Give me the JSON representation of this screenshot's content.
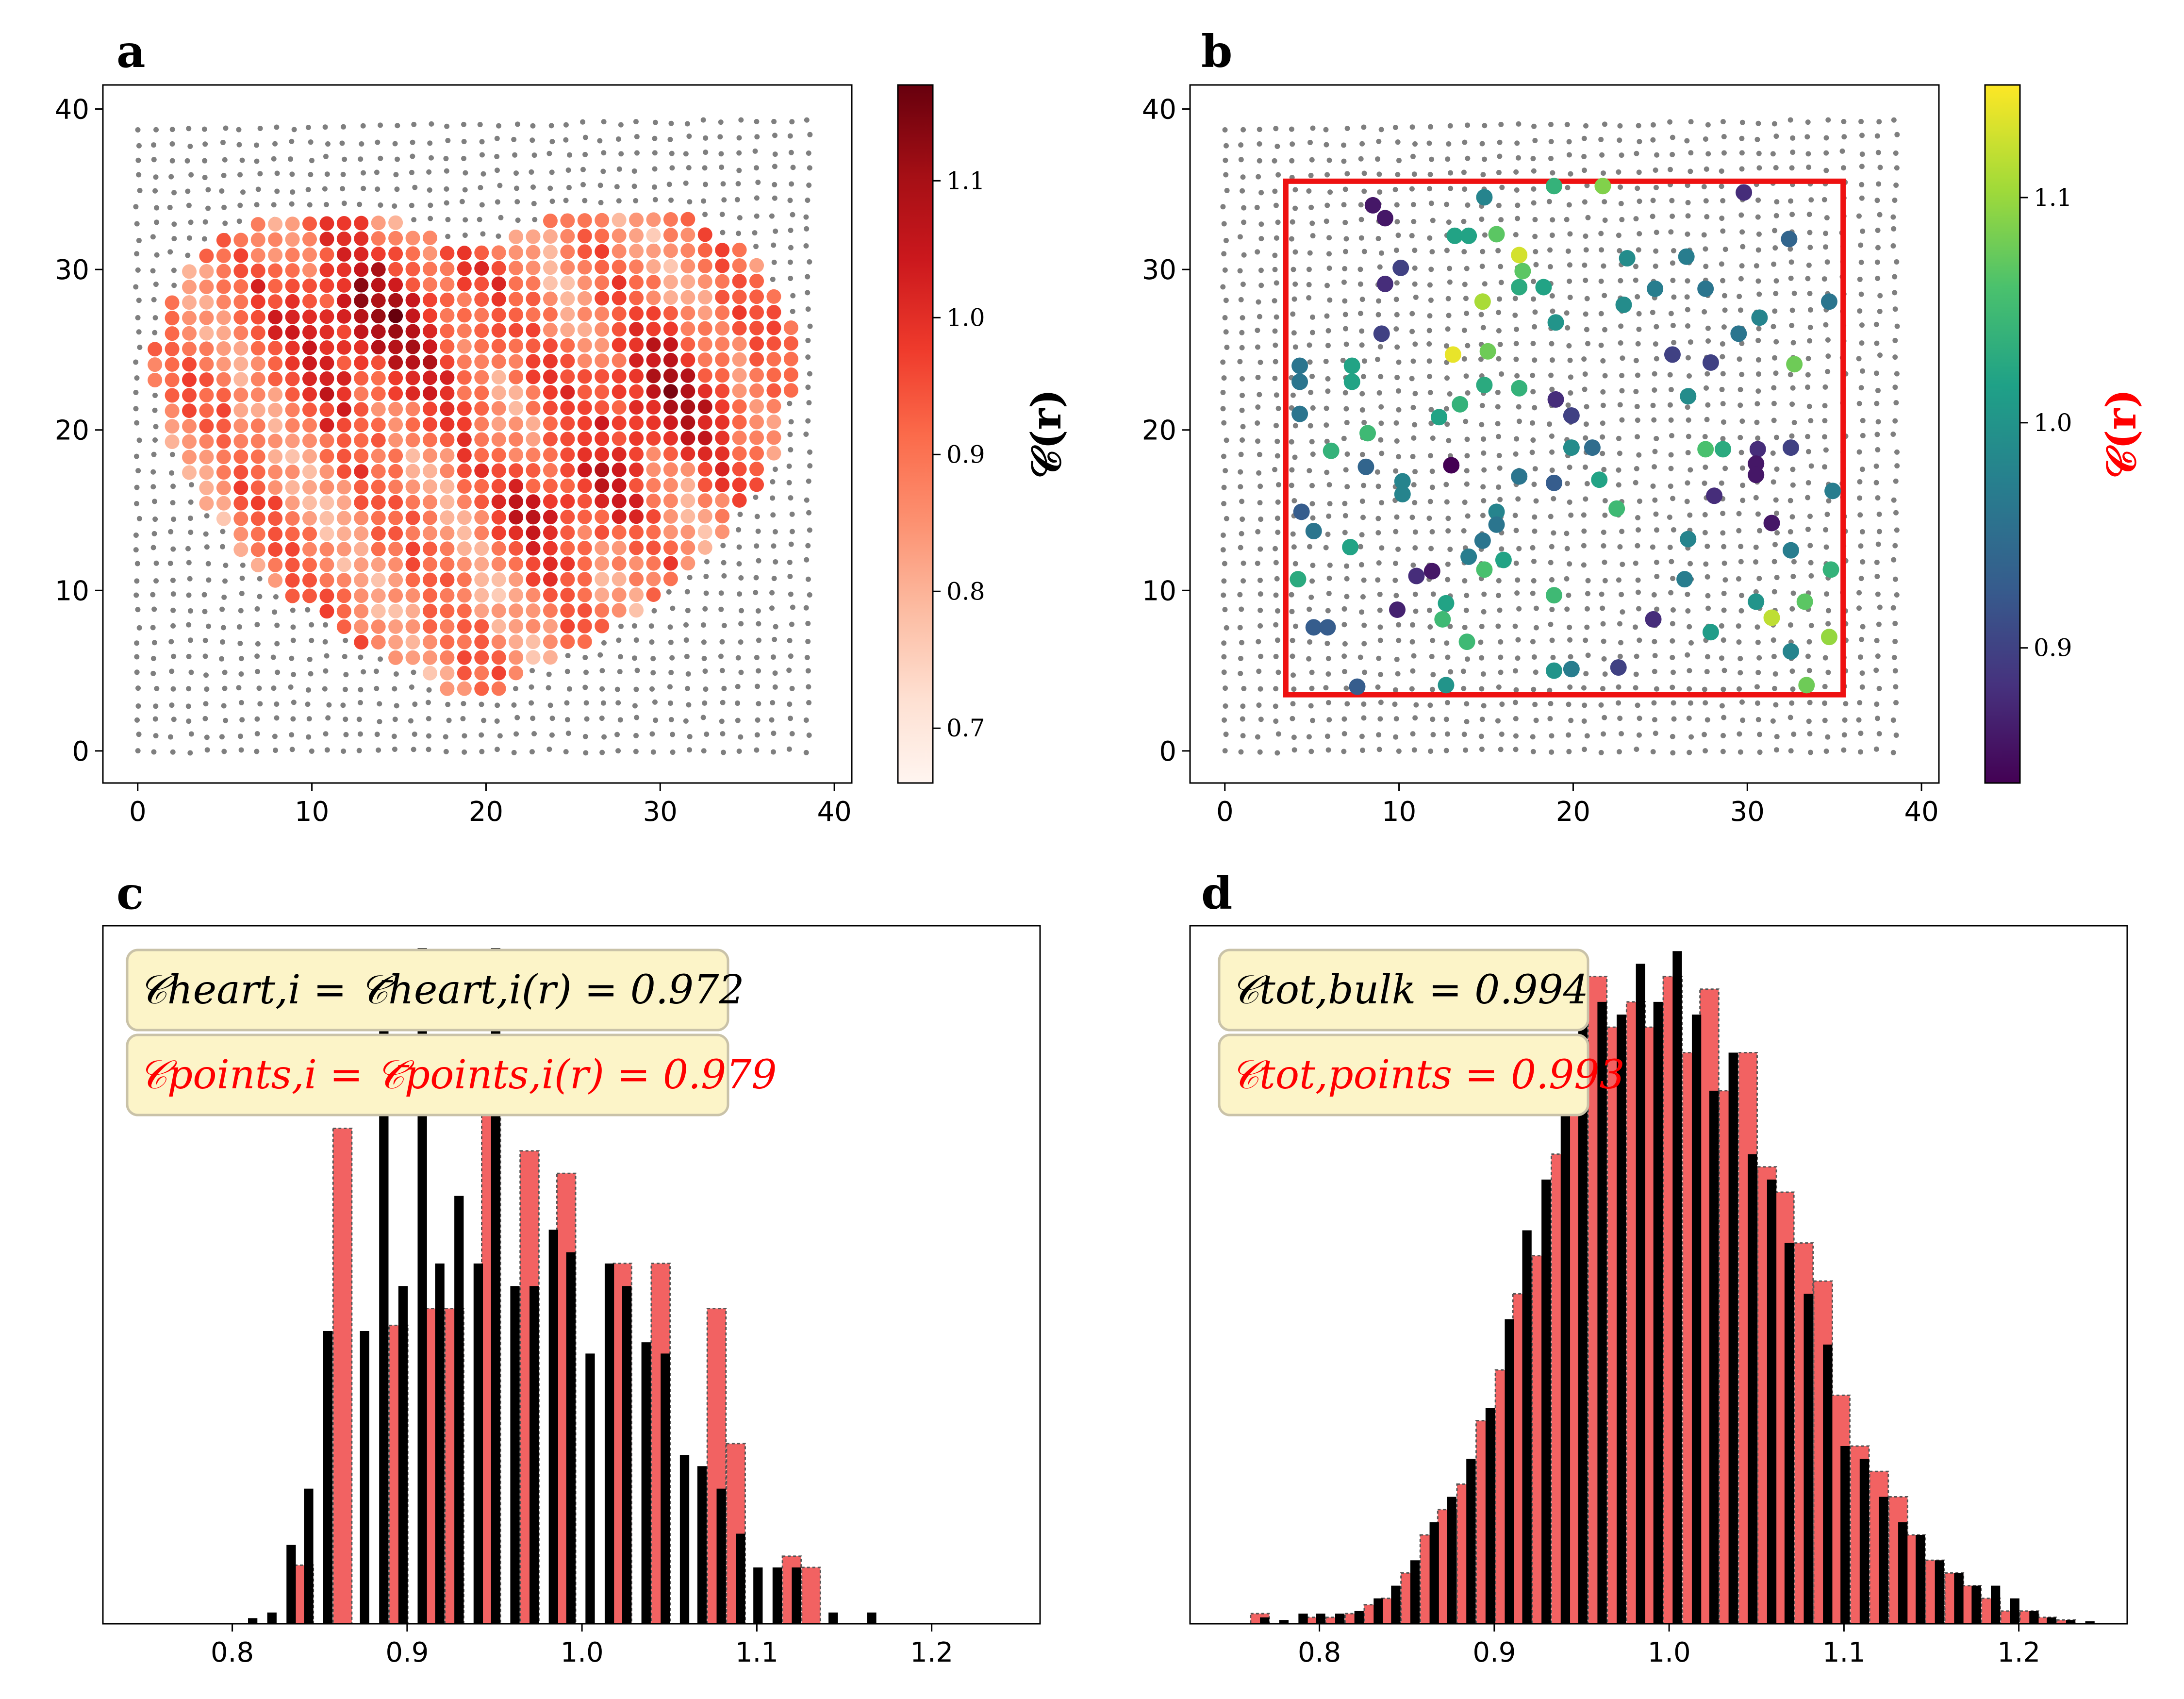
{
  "panels": {
    "a": {
      "letter": "a",
      "colorbar_label": "𝒞(r)",
      "colorbar_ticks": [
        "0.7",
        "0.8",
        "0.9",
        "1.0",
        "1.1"
      ]
    },
    "b": {
      "letter": "b",
      "colorbar_label": "𝒞(r)",
      "colorbar_ticks": [
        "0.9",
        "1.0",
        "1.1"
      ]
    },
    "c": {
      "letter": "c",
      "stat_heart": "𝒞heart,i = 𝒞̄heart,i(r) = 0.972",
      "stat_points": "𝒞points,i = 𝒞̄points,i(r) = 0.979"
    },
    "d": {
      "letter": "d",
      "stat_bulk": "𝒞tot,bulk = 0.994",
      "stat_points": "𝒞tot,points = 0.993"
    }
  },
  "colors": {
    "grid_dot": "#7f7f7f",
    "box_red": "#ee1111",
    "hist_black": "#000000",
    "hist_red": "#f26262",
    "stat_box_fill": "#fcf4c8",
    "stat_box_edge": "#c9c2a8",
    "text_red": "#ff0000"
  },
  "chart_data": [
    {
      "panel": "a",
      "type": "scatter",
      "title": "",
      "xlabel": "",
      "ylabel": "",
      "xlim": [
        -2,
        41
      ],
      "ylim": [
        -2,
        41.5
      ],
      "xticks": [
        "0",
        "10",
        "20",
        "30",
        "40"
      ],
      "yticks": [
        "0",
        "10",
        "20",
        "30",
        "40"
      ],
      "background": "regular grid of gray points, 40 x 40, spacing 1",
      "foreground": "heart-shaped region of points colored by 𝒞(r), Reds colormap",
      "colormap": "Reds",
      "clim": [
        0.66,
        1.17
      ]
    },
    {
      "panel": "b",
      "type": "scatter",
      "title": "",
      "xlabel": "",
      "ylabel": "",
      "xlim": [
        -2,
        41
      ],
      "ylim": [
        -2,
        41.5
      ],
      "xticks": [
        "0",
        "10",
        "20",
        "30",
        "40"
      ],
      "yticks": [
        "0",
        "10",
        "20",
        "30",
        "40"
      ],
      "background": "regular grid of gray points, 40 x 40, spacing 1",
      "selection_box": {
        "x": [
          3.5,
          35.5
        ],
        "y": [
          3.5,
          35.5
        ]
      },
      "colormap": "viridis",
      "clim": [
        0.84,
        1.15
      ],
      "points": [
        [
          8.5,
          34.0,
          0.86
        ],
        [
          9.2,
          33.2,
          0.86
        ],
        [
          14.9,
          34.5,
          0.98
        ],
        [
          18.9,
          35.2,
          1.04
        ],
        [
          21.7,
          35.2,
          1.09
        ],
        [
          29.8,
          34.8,
          0.88
        ],
        [
          13.2,
          32.1,
          1.02
        ],
        [
          14.0,
          32.1,
          1.02
        ],
        [
          15.6,
          32.2,
          1.07
        ],
        [
          32.4,
          31.9,
          0.94
        ],
        [
          16.9,
          30.9,
          1.13
        ],
        [
          10.1,
          30.1,
          0.9
        ],
        [
          17.1,
          29.9,
          1.07
        ],
        [
          23.1,
          30.7,
          0.99
        ],
        [
          26.5,
          30.8,
          0.97
        ],
        [
          9.2,
          29.1,
          0.88
        ],
        [
          16.9,
          28.9,
          1.03
        ],
        [
          18.3,
          28.9,
          1.02
        ],
        [
          24.7,
          28.8,
          0.97
        ],
        [
          27.6,
          28.8,
          0.96
        ],
        [
          14.8,
          28.0,
          1.11
        ],
        [
          22.9,
          27.8,
          0.99
        ],
        [
          30.7,
          27.0,
          0.98
        ],
        [
          34.7,
          28.0,
          0.96
        ],
        [
          9.0,
          26.0,
          0.9
        ],
        [
          19.0,
          26.7,
          1.0
        ],
        [
          29.5,
          26.0,
          0.96
        ],
        [
          13.1,
          24.7,
          1.14
        ],
        [
          15.1,
          24.9,
          1.08
        ],
        [
          25.7,
          24.7,
          0.9
        ],
        [
          27.9,
          24.2,
          0.9
        ],
        [
          32.7,
          24.1,
          1.08
        ],
        [
          4.3,
          24.0,
          0.96
        ],
        [
          7.3,
          24.0,
          1.02
        ],
        [
          7.3,
          23.0,
          1.02
        ],
        [
          4.3,
          23.0,
          0.96
        ],
        [
          14.9,
          22.8,
          1.03
        ],
        [
          16.9,
          22.6,
          1.04
        ],
        [
          26.6,
          22.1,
          0.99
        ],
        [
          4.3,
          21.0,
          0.96
        ],
        [
          13.5,
          21.6,
          1.04
        ],
        [
          12.3,
          20.8,
          1.02
        ],
        [
          19.0,
          21.9,
          0.88
        ],
        [
          19.9,
          20.9,
          0.9
        ],
        [
          8.2,
          19.8,
          1.05
        ],
        [
          6.1,
          18.7,
          1.04
        ],
        [
          19.9,
          18.9,
          0.99
        ],
        [
          21.1,
          18.9,
          0.95
        ],
        [
          27.6,
          18.8,
          1.06
        ],
        [
          28.6,
          18.8,
          1.03
        ],
        [
          30.6,
          18.8,
          0.88
        ],
        [
          32.5,
          18.9,
          0.9
        ],
        [
          8.1,
          17.7,
          0.94
        ],
        [
          13.0,
          17.8,
          0.84
        ],
        [
          16.9,
          17.1,
          0.96
        ],
        [
          18.9,
          16.7,
          0.93
        ],
        [
          21.5,
          16.9,
          1.02
        ],
        [
          30.5,
          17.9,
          0.86
        ],
        [
          30.5,
          17.2,
          0.86
        ],
        [
          10.2,
          16.8,
          0.98
        ],
        [
          10.2,
          16.0,
          0.98
        ],
        [
          28.1,
          15.9,
          0.88
        ],
        [
          34.9,
          16.2,
          0.97
        ],
        [
          4.4,
          14.9,
          0.93
        ],
        [
          15.6,
          14.9,
          0.98
        ],
        [
          22.5,
          15.1,
          1.05
        ],
        [
          31.4,
          14.2,
          0.86
        ],
        [
          5.1,
          13.7,
          0.96
        ],
        [
          15.6,
          14.1,
          0.96
        ],
        [
          14.8,
          13.1,
          0.96
        ],
        [
          26.6,
          13.2,
          0.98
        ],
        [
          7.2,
          12.7,
          1.02
        ],
        [
          14.0,
          12.1,
          0.97
        ],
        [
          16.0,
          11.9,
          1.02
        ],
        [
          32.5,
          12.5,
          0.97
        ],
        [
          4.2,
          10.7,
          1.03
        ],
        [
          11.0,
          10.9,
          0.88
        ],
        [
          11.9,
          11.2,
          0.86
        ],
        [
          14.9,
          11.3,
          1.06
        ],
        [
          26.4,
          10.7,
          0.97
        ],
        [
          34.8,
          11.3,
          1.04
        ],
        [
          9.9,
          8.8,
          0.87
        ],
        [
          12.7,
          9.2,
          1.02
        ],
        [
          18.9,
          9.7,
          1.05
        ],
        [
          30.5,
          9.3,
          1.0
        ],
        [
          31.4,
          8.3,
          1.12
        ],
        [
          33.3,
          9.3,
          1.07
        ],
        [
          5.1,
          7.7,
          0.93
        ],
        [
          5.9,
          7.7,
          0.93
        ],
        [
          12.5,
          8.2,
          1.05
        ],
        [
          24.6,
          8.2,
          0.88
        ],
        [
          27.9,
          7.4,
          1.01
        ],
        [
          13.9,
          6.8,
          1.05
        ],
        [
          32.5,
          6.2,
          0.98
        ],
        [
          34.7,
          7.1,
          1.1
        ],
        [
          7.6,
          4.0,
          0.93
        ],
        [
          12.7,
          4.1,
          1.0
        ],
        [
          18.9,
          5.0,
          1.0
        ],
        [
          19.9,
          5.1,
          0.97
        ],
        [
          22.6,
          5.2,
          0.9
        ],
        [
          33.4,
          4.1,
          1.08
        ]
      ]
    },
    {
      "panel": "c",
      "type": "bar",
      "title": "",
      "xlabel": "",
      "ylabel": "",
      "xlim": [
        0.726,
        1.262
      ],
      "xticks": [
        "0.8",
        "0.9",
        "1.0",
        "1.1",
        "1.2"
      ],
      "bin_width": 0.0107,
      "series": [
        {
          "bins": [
            0.809,
            0.82,
            0.831,
            0.841,
            0.852,
            0.863,
            0.873,
            0.884,
            0.895,
            0.906,
            0.916,
            0.927,
            0.938,
            0.948,
            0.959,
            0.97,
            0.981,
            0.991,
            1.002,
            1.013,
            1.023,
            1.034,
            1.045,
            1.056,
            1.066,
            1.077,
            1.088,
            1.098,
            1.109,
            1.12,
            1.131,
            1.141,
            1.152,
            1.163,
            1.173
          ],
          "values": [
            0.5,
            1.0,
            7.0,
            12.0,
            26.0,
            0,
            26.0,
            53.0,
            30.0,
            60.0,
            32.0,
            38.0,
            32.0,
            60.0,
            30.0,
            30.0,
            35.0,
            33.0,
            24.0,
            32.0,
            30.0,
            25.0,
            24.0,
            15.0,
            14.0,
            12.0,
            8.0,
            5.0,
            5.0,
            5.0,
            0,
            1.0,
            0,
            1.0,
            0
          ]
        },
        {
          "bins": [
            0.809,
            0.82,
            0.831,
            0.841,
            0.852,
            0.863,
            0.873,
            0.884,
            0.895,
            0.906,
            0.916,
            0.927,
            0.938,
            0.948,
            0.959,
            0.97,
            0.981,
            0.991,
            1.002,
            1.013,
            1.023,
            1.034,
            1.045,
            1.056,
            1.066,
            1.077,
            1.088,
            1.098,
            1.109,
            1.12,
            1.131,
            1.141,
            1.152,
            1.163,
            1.173
          ],
          "values": [
            0,
            0,
            0,
            5.2,
            0,
            44.0,
            0,
            0,
            26.5,
            0,
            28.0,
            28.0,
            0,
            48.5,
            0,
            42.0,
            0,
            40.0,
            0,
            0,
            32.0,
            0,
            32.0,
            0,
            0,
            28.0,
            16.0,
            0,
            0,
            6.0,
            5.0,
            0,
            0,
            0,
            0
          ]
        }
      ]
    },
    {
      "panel": "d",
      "type": "bar",
      "title": "",
      "xlabel": "",
      "ylabel": "",
      "xlim": [
        0.726,
        1.262
      ],
      "xticks": [
        "0.8",
        "0.9",
        "1.0",
        "1.1",
        "1.2"
      ],
      "bin_width": 0.0107,
      "series": [
        {
          "bins": [
            0.766,
            0.777,
            0.788,
            0.798,
            0.809,
            0.82,
            0.831,
            0.841,
            0.852,
            0.863,
            0.873,
            0.884,
            0.895,
            0.906,
            0.916,
            0.927,
            0.938,
            0.948,
            0.959,
            0.97,
            0.981,
            0.991,
            1.002,
            1.013,
            1.023,
            1.034,
            1.045,
            1.056,
            1.066,
            1.077,
            1.088,
            1.098,
            1.109,
            1.12,
            1.131,
            1.141,
            1.152,
            1.163,
            1.173,
            1.184,
            1.195,
            1.206,
            1.216,
            1.227,
            1.238
          ],
          "values": [
            0.5,
            0.3,
            0.8,
            0.8,
            0.8,
            1.0,
            2.0,
            3.0,
            5.0,
            8.0,
            10.0,
            13.0,
            17.0,
            24.0,
            31.0,
            35.0,
            41.0,
            48.0,
            49.0,
            48.0,
            52.0,
            49.0,
            53.0,
            48.0,
            42.0,
            45.0,
            37.0,
            35.0,
            30.0,
            26.0,
            22.0,
            14.0,
            13.0,
            10.0,
            8.0,
            7.0,
            5.0,
            4.0,
            3.0,
            3.0,
            2.0,
            1.0,
            0.5,
            0.3,
            0.2
          ]
        },
        {
          "bins": [
            0.766,
            0.777,
            0.788,
            0.798,
            0.809,
            0.82,
            0.831,
            0.841,
            0.852,
            0.863,
            0.873,
            0.884,
            0.895,
            0.906,
            0.916,
            0.927,
            0.938,
            0.948,
            0.959,
            0.97,
            0.981,
            0.991,
            1.002,
            1.013,
            1.023,
            1.034,
            1.045,
            1.056,
            1.066,
            1.077,
            1.088,
            1.098,
            1.109,
            1.12,
            1.131,
            1.141,
            1.152,
            1.163,
            1.173,
            1.184,
            1.195,
            1.206,
            1.216,
            1.227,
            1.238
          ],
          "values": [
            0.8,
            0,
            0,
            0.5,
            0.5,
            0.8,
            1.5,
            2.0,
            4.0,
            7.0,
            9.0,
            11.0,
            16.0,
            20.0,
            26.0,
            29.0,
            37.0,
            45.0,
            51.0,
            47.0,
            49.0,
            47.0,
            51.0,
            45.0,
            50.0,
            42.0,
            45.0,
            36.0,
            34.0,
            30.0,
            27.0,
            18.0,
            14.0,
            12.0,
            10.0,
            7.0,
            5.0,
            4.0,
            3.0,
            2.0,
            1.0,
            1.0,
            0.5,
            0.3,
            0
          ]
        }
      ]
    }
  ]
}
